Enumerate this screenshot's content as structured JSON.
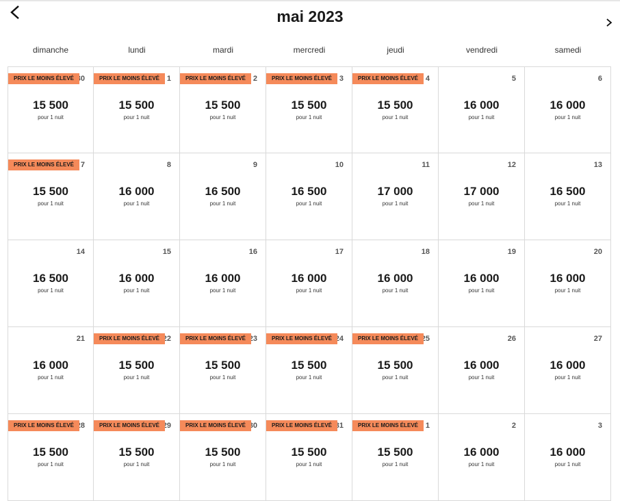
{
  "header": {
    "title": "mai 2023"
  },
  "weekdays": [
    "dimanche",
    "lundi",
    "mardi",
    "mercredi",
    "jeudi",
    "vendredi",
    "samedi"
  ],
  "weeks": [
    [
      {
        "day": "30",
        "badge": "PRIX LE MOINS ÉLEVÉ",
        "price": "15 500",
        "unit": "pour 1 nuit"
      },
      {
        "day": "1",
        "badge": "PRIX LE MOINS ÉLEVÉ",
        "price": "15 500",
        "unit": "pour 1 nuit"
      },
      {
        "day": "2",
        "badge": "PRIX LE MOINS ÉLEVÉ",
        "price": "15 500",
        "unit": "pour 1 nuit"
      },
      {
        "day": "3",
        "badge": "PRIX LE MOINS ÉLEVÉ",
        "price": "15 500",
        "unit": "pour 1 nuit"
      },
      {
        "day": "4",
        "badge": "PRIX LE MOINS ÉLEVÉ",
        "price": "15 500",
        "unit": "pour 1 nuit"
      },
      {
        "day": "5",
        "price": "16 000",
        "unit": "pour 1 nuit"
      },
      {
        "day": "6",
        "price": "16 000",
        "unit": "pour 1 nuit"
      }
    ],
    [
      {
        "day": "7",
        "badge": "PRIX LE MOINS ÉLEVÉ",
        "price": "15 500",
        "unit": "pour 1 nuit"
      },
      {
        "day": "8",
        "price": "16 000",
        "unit": "pour 1 nuit"
      },
      {
        "day": "9",
        "price": "16 500",
        "unit": "pour 1 nuit"
      },
      {
        "day": "10",
        "price": "16 500",
        "unit": "pour 1 nuit"
      },
      {
        "day": "11",
        "price": "17 000",
        "unit": "pour 1 nuit"
      },
      {
        "day": "12",
        "price": "17 000",
        "unit": "pour 1 nuit"
      },
      {
        "day": "13",
        "price": "16 500",
        "unit": "pour 1 nuit"
      }
    ],
    [
      {
        "day": "14",
        "price": "16 500",
        "unit": "pour 1 nuit"
      },
      {
        "day": "15",
        "price": "16 000",
        "unit": "pour 1 nuit"
      },
      {
        "day": "16",
        "price": "16 000",
        "unit": "pour 1 nuit"
      },
      {
        "day": "17",
        "price": "16 000",
        "unit": "pour 1 nuit"
      },
      {
        "day": "18",
        "price": "16 000",
        "unit": "pour 1 nuit"
      },
      {
        "day": "19",
        "price": "16 000",
        "unit": "pour 1 nuit"
      },
      {
        "day": "20",
        "price": "16 000",
        "unit": "pour 1 nuit"
      }
    ],
    [
      {
        "day": "21",
        "price": "16 000",
        "unit": "pour 1 nuit"
      },
      {
        "day": "22",
        "badge": "PRIX LE MOINS ÉLEVÉ",
        "price": "15 500",
        "unit": "pour 1 nuit"
      },
      {
        "day": "23",
        "badge": "PRIX LE MOINS ÉLEVÉ",
        "price": "15 500",
        "unit": "pour 1 nuit"
      },
      {
        "day": "24",
        "badge": "PRIX LE MOINS ÉLEVÉ",
        "price": "15 500",
        "unit": "pour 1 nuit"
      },
      {
        "day": "25",
        "badge": "PRIX LE MOINS ÉLEVÉ",
        "price": "15 500",
        "unit": "pour 1 nuit"
      },
      {
        "day": "26",
        "price": "16 000",
        "unit": "pour 1 nuit"
      },
      {
        "day": "27",
        "price": "16 000",
        "unit": "pour 1 nuit"
      }
    ],
    [
      {
        "day": "28",
        "badge": "PRIX LE MOINS ÉLEVÉ",
        "price": "15 500",
        "unit": "pour 1 nuit"
      },
      {
        "day": "29",
        "badge": "PRIX LE MOINS ÉLEVÉ",
        "price": "15 500",
        "unit": "pour 1 nuit"
      },
      {
        "day": "30",
        "badge": "PRIX LE MOINS ÉLEVÉ",
        "price": "15 500",
        "unit": "pour 1 nuit"
      },
      {
        "day": "31",
        "badge": "PRIX LE MOINS ÉLEVÉ",
        "price": "15 500",
        "unit": "pour 1 nuit"
      },
      {
        "day": "1",
        "badge": "PRIX LE MOINS ÉLEVÉ",
        "price": "15 500",
        "unit": "pour 1 nuit"
      },
      {
        "day": "2",
        "price": "16 000",
        "unit": "pour 1 nuit"
      },
      {
        "day": "3",
        "price": "16 000",
        "unit": "pour 1 nuit"
      }
    ]
  ]
}
